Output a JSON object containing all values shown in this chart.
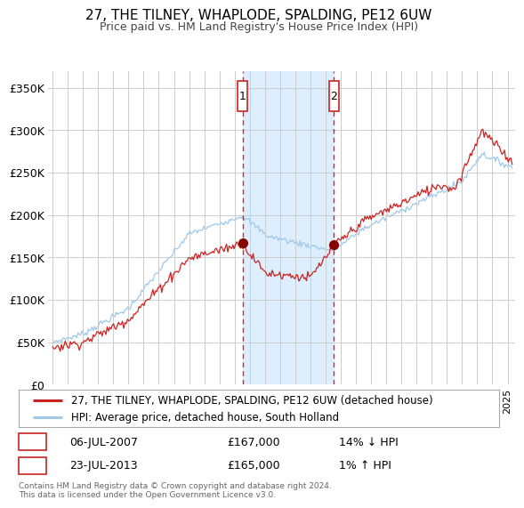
{
  "title": "27, THE TILNEY, WHAPLODE, SPALDING, PE12 6UW",
  "subtitle": "Price paid vs. HM Land Registry's House Price Index (HPI)",
  "legend_line1": "27, THE TILNEY, WHAPLODE, SPALDING, PE12 6UW (detached house)",
  "legend_line2": "HPI: Average price, detached house, South Holland",
  "sale1_yr": 2007.542,
  "sale1_price": 167000,
  "sale2_yr": 2013.558,
  "sale2_price": 165000,
  "hpi_color": "#a0c8e8",
  "price_color": "#cc2222",
  "marker_color": "#880000",
  "shade_color": "#ddeeff",
  "dashed_color": "#dd2222",
  "ylim": [
    0,
    370000
  ],
  "xlim_start": 1994.7,
  "xlim_end": 2025.5,
  "yticks": [
    0,
    50000,
    100000,
    150000,
    200000,
    250000,
    300000,
    350000
  ],
  "ytick_labels": [
    "£0",
    "£50K",
    "£100K",
    "£150K",
    "£200K",
    "£250K",
    "£300K",
    "£350K"
  ],
  "footer": "Contains HM Land Registry data © Crown copyright and database right 2024.\nThis data is licensed under the Open Government Licence v3.0.",
  "grid_color": "#cccccc",
  "background_color": "#ffffff"
}
